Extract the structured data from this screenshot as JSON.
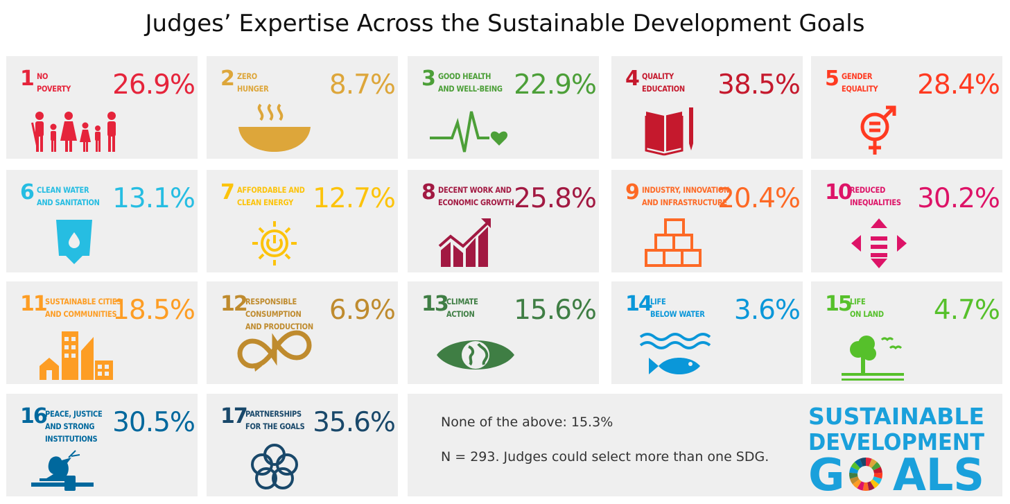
{
  "title": "Judges’ Expertise Across the Sustainable Development Goals",
  "chart_data": {
    "type": "table",
    "title": "Judges’ Expertise Across the Sustainable Development Goals",
    "goals": [
      {
        "num": "1",
        "name_lines": [
          "No",
          "Poverty"
        ],
        "value": "26.9%",
        "pct": 26.9,
        "color": "#e5243b"
      },
      {
        "num": "2",
        "name_lines": [
          "Zero",
          "Hunger"
        ],
        "value": "8.7%",
        "pct": 8.7,
        "color": "#dda63a"
      },
      {
        "num": "3",
        "name_lines": [
          "Good Health",
          "and Well-Being"
        ],
        "value": "22.9%",
        "pct": 22.9,
        "color": "#4c9f38"
      },
      {
        "num": "4",
        "name_lines": [
          "Quality",
          "Education"
        ],
        "value": "38.5%",
        "pct": 38.5,
        "color": "#c5192d"
      },
      {
        "num": "5",
        "name_lines": [
          "Gender",
          "Equality"
        ],
        "value": "28.4%",
        "pct": 28.4,
        "color": "#ff3a21"
      },
      {
        "num": "6",
        "name_lines": [
          "Clean Water",
          "and Sanitation"
        ],
        "value": "13.1%",
        "pct": 13.1,
        "color": "#26bde2"
      },
      {
        "num": "7",
        "name_lines": [
          "Affordable and",
          "Clean Energy"
        ],
        "value": "12.7%",
        "pct": 12.7,
        "color": "#fcc30b"
      },
      {
        "num": "8",
        "name_lines": [
          "Decent Work and",
          "Economic Growth"
        ],
        "value": "25.8%",
        "pct": 25.8,
        "color": "#a21942"
      },
      {
        "num": "9",
        "name_lines": [
          "Industry, Innovation",
          "and Infrastructure"
        ],
        "value": "20.4%",
        "pct": 20.4,
        "color": "#fd6925"
      },
      {
        "num": "10",
        "name_lines": [
          "Reduced",
          "Inequalities"
        ],
        "value": "30.2%",
        "pct": 30.2,
        "color": "#dd1367"
      },
      {
        "num": "11",
        "name_lines": [
          "Sustainable Cities",
          "and Communities"
        ],
        "value": "18.5%",
        "pct": 18.5,
        "color": "#fd9d24"
      },
      {
        "num": "12",
        "name_lines": [
          "Responsible",
          "Consumption",
          "and Production"
        ],
        "value": "6.9%",
        "pct": 6.9,
        "color": "#bf8b2e"
      },
      {
        "num": "13",
        "name_lines": [
          "Climate",
          "Action"
        ],
        "value": "15.6%",
        "pct": 15.6,
        "color": "#3f7e44"
      },
      {
        "num": "14",
        "name_lines": [
          "Life",
          "Below Water"
        ],
        "value": "3.6%",
        "pct": 3.6,
        "color": "#0a97d9"
      },
      {
        "num": "15",
        "name_lines": [
          "Life",
          "on Land"
        ],
        "value": "4.7%",
        "pct": 4.7,
        "color": "#56c02b"
      },
      {
        "num": "16",
        "name_lines": [
          "Peace, Justice",
          "and Strong",
          "Institutions"
        ],
        "value": "30.5%",
        "pct": 30.5,
        "color": "#00689d"
      },
      {
        "num": "17",
        "name_lines": [
          "Partnerships",
          "for the Goals"
        ],
        "value": "35.6%",
        "pct": 35.6,
        "color": "#19486a"
      }
    ]
  },
  "notes": {
    "none_of_above": "None of the above: 15.3%",
    "sample": "N = 293. Judges could select more than one SDG."
  },
  "logo": {
    "line1": "SUSTAINABLE",
    "line2": "DEVELOPMENT",
    "line3_left": "G",
    "line3_right": "ALS",
    "color": "#1aa0db"
  },
  "icons": [
    "family-icon",
    "bowl-icon",
    "heartbeat-icon",
    "book-icon",
    "gender-icon",
    "water-glass-icon",
    "sun-power-icon",
    "growth-chart-icon",
    "cubes-icon",
    "equal-arrows-icon",
    "buildings-icon",
    "infinity-icon",
    "eye-globe-icon",
    "fish-icon",
    "tree-icon",
    "dove-gavel-icon",
    "rings-icon"
  ]
}
